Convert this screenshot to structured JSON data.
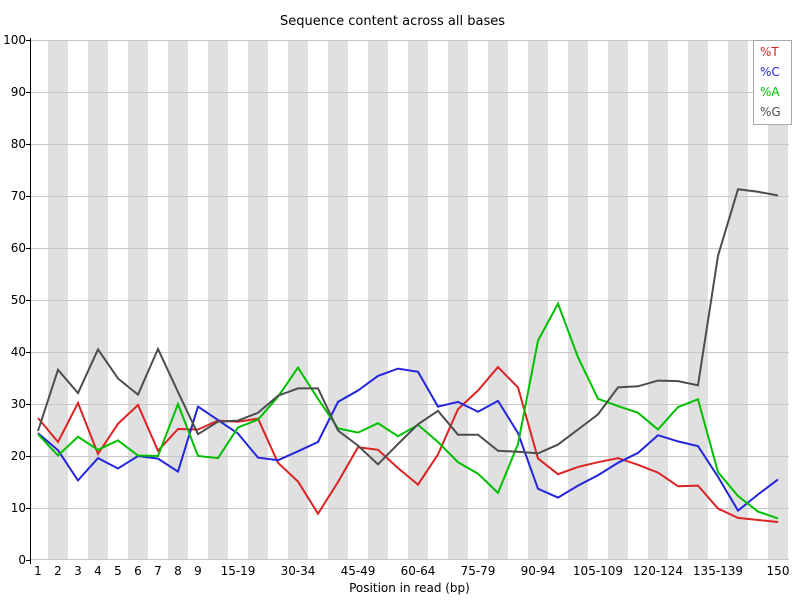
{
  "chart_data": {
    "type": "line",
    "title": "Sequence content across all bases",
    "xlabel": "Position in read (bp)",
    "ylabel": "",
    "ylim": [
      0,
      100
    ],
    "yticks": [
      0,
      10,
      20,
      30,
      40,
      50,
      60,
      70,
      80,
      90,
      100
    ],
    "grid": "horizontal gray gridlines every 10; alternating light-gray vertical bands on every other position bin",
    "legend_position": "top-right",
    "categories": [
      "1",
      "2",
      "3",
      "4",
      "5",
      "6",
      "7",
      "8",
      "9",
      "10-14",
      "15-19",
      "20-24",
      "25-29",
      "30-34",
      "35-39",
      "40-44",
      "45-49",
      "50-54",
      "55-59",
      "60-64",
      "65-69",
      "70-74",
      "75-79",
      "80-84",
      "85-89",
      "90-94",
      "95-99",
      "100-104",
      "105-109",
      "110-114",
      "115-119",
      "120-124",
      "125-129",
      "130-134",
      "135-139",
      "140-144",
      "145-149",
      "150"
    ],
    "x_ticks_shown": [
      "1",
      "2",
      "3",
      "4",
      "5",
      "6",
      "7",
      "8",
      "9",
      "15-19",
      "30-34",
      "45-49",
      "60-64",
      "75-79",
      "90-94",
      "105-109",
      "120-124",
      "135-139",
      "150"
    ],
    "x_tick_shown_indices": [
      0,
      1,
      2,
      3,
      4,
      5,
      6,
      7,
      8,
      10,
      13,
      16,
      19,
      22,
      25,
      28,
      31,
      34,
      37
    ],
    "series": [
      {
        "name": "%T",
        "color": "#dd2222",
        "values": [
          27.3,
          22.7,
          30.2,
          20.4,
          26.2,
          29.8,
          21.0,
          25.2,
          25.1,
          26.8,
          26.6,
          27.2,
          18.7,
          15.1,
          8.9,
          15.0,
          21.7,
          21.2,
          17.7,
          14.5,
          20.3,
          29.0,
          32.6,
          37.1,
          33.2,
          19.5,
          16.5,
          17.9,
          18.8,
          19.6,
          18.3,
          16.8,
          14.2,
          14.3,
          9.9,
          8.1,
          7.7,
          7.3
        ]
      },
      {
        "name": "%C",
        "color": "#2424dd",
        "values": [
          24.4,
          21.1,
          15.3,
          19.6,
          17.6,
          20.0,
          19.5,
          17.0,
          29.5,
          26.9,
          24.3,
          19.7,
          19.2,
          20.9,
          22.7,
          30.4,
          32.6,
          35.4,
          36.8,
          36.2,
          29.5,
          30.4,
          28.5,
          30.6,
          24.4,
          13.7,
          12.0,
          14.3,
          16.3,
          18.7,
          20.6,
          24.0,
          22.8,
          21.9,
          16.0,
          9.5,
          12.6,
          15.5
        ]
      },
      {
        "name": "%A",
        "color": "#00c000",
        "values": [
          24.2,
          20.1,
          23.7,
          21.2,
          23.0,
          20.1,
          20.0,
          30.0,
          20.0,
          19.6,
          25.5,
          27.0,
          31.4,
          37.0,
          31.0,
          25.3,
          24.5,
          26.3,
          23.8,
          26.0,
          22.7,
          18.8,
          16.6,
          12.9,
          22.3,
          42.2,
          49.3,
          39.0,
          31.0,
          29.6,
          28.3,
          25.1,
          29.4,
          30.9,
          16.9,
          12.3,
          9.3,
          8.0
        ]
      },
      {
        "name": "%G",
        "color": "#4d4d4d",
        "values": [
          24.8,
          36.6,
          32.1,
          40.5,
          34.9,
          31.8,
          40.6,
          32.3,
          24.2,
          26.6,
          26.8,
          28.3,
          31.6,
          33.0,
          33.0,
          24.9,
          22.0,
          18.4,
          22.3,
          26.1,
          28.7,
          24.1,
          24.1,
          21.0,
          20.8,
          20.5,
          22.2,
          25.1,
          28.0,
          33.2,
          33.4,
          34.5,
          34.4,
          33.6,
          58.5,
          71.3,
          70.8,
          70.1
        ]
      }
    ],
    "colors": {
      "band": "#e0e0e0",
      "gridline": "#c8c8c8",
      "axis": "#000000",
      "plot_background": "#ffffff"
    }
  }
}
